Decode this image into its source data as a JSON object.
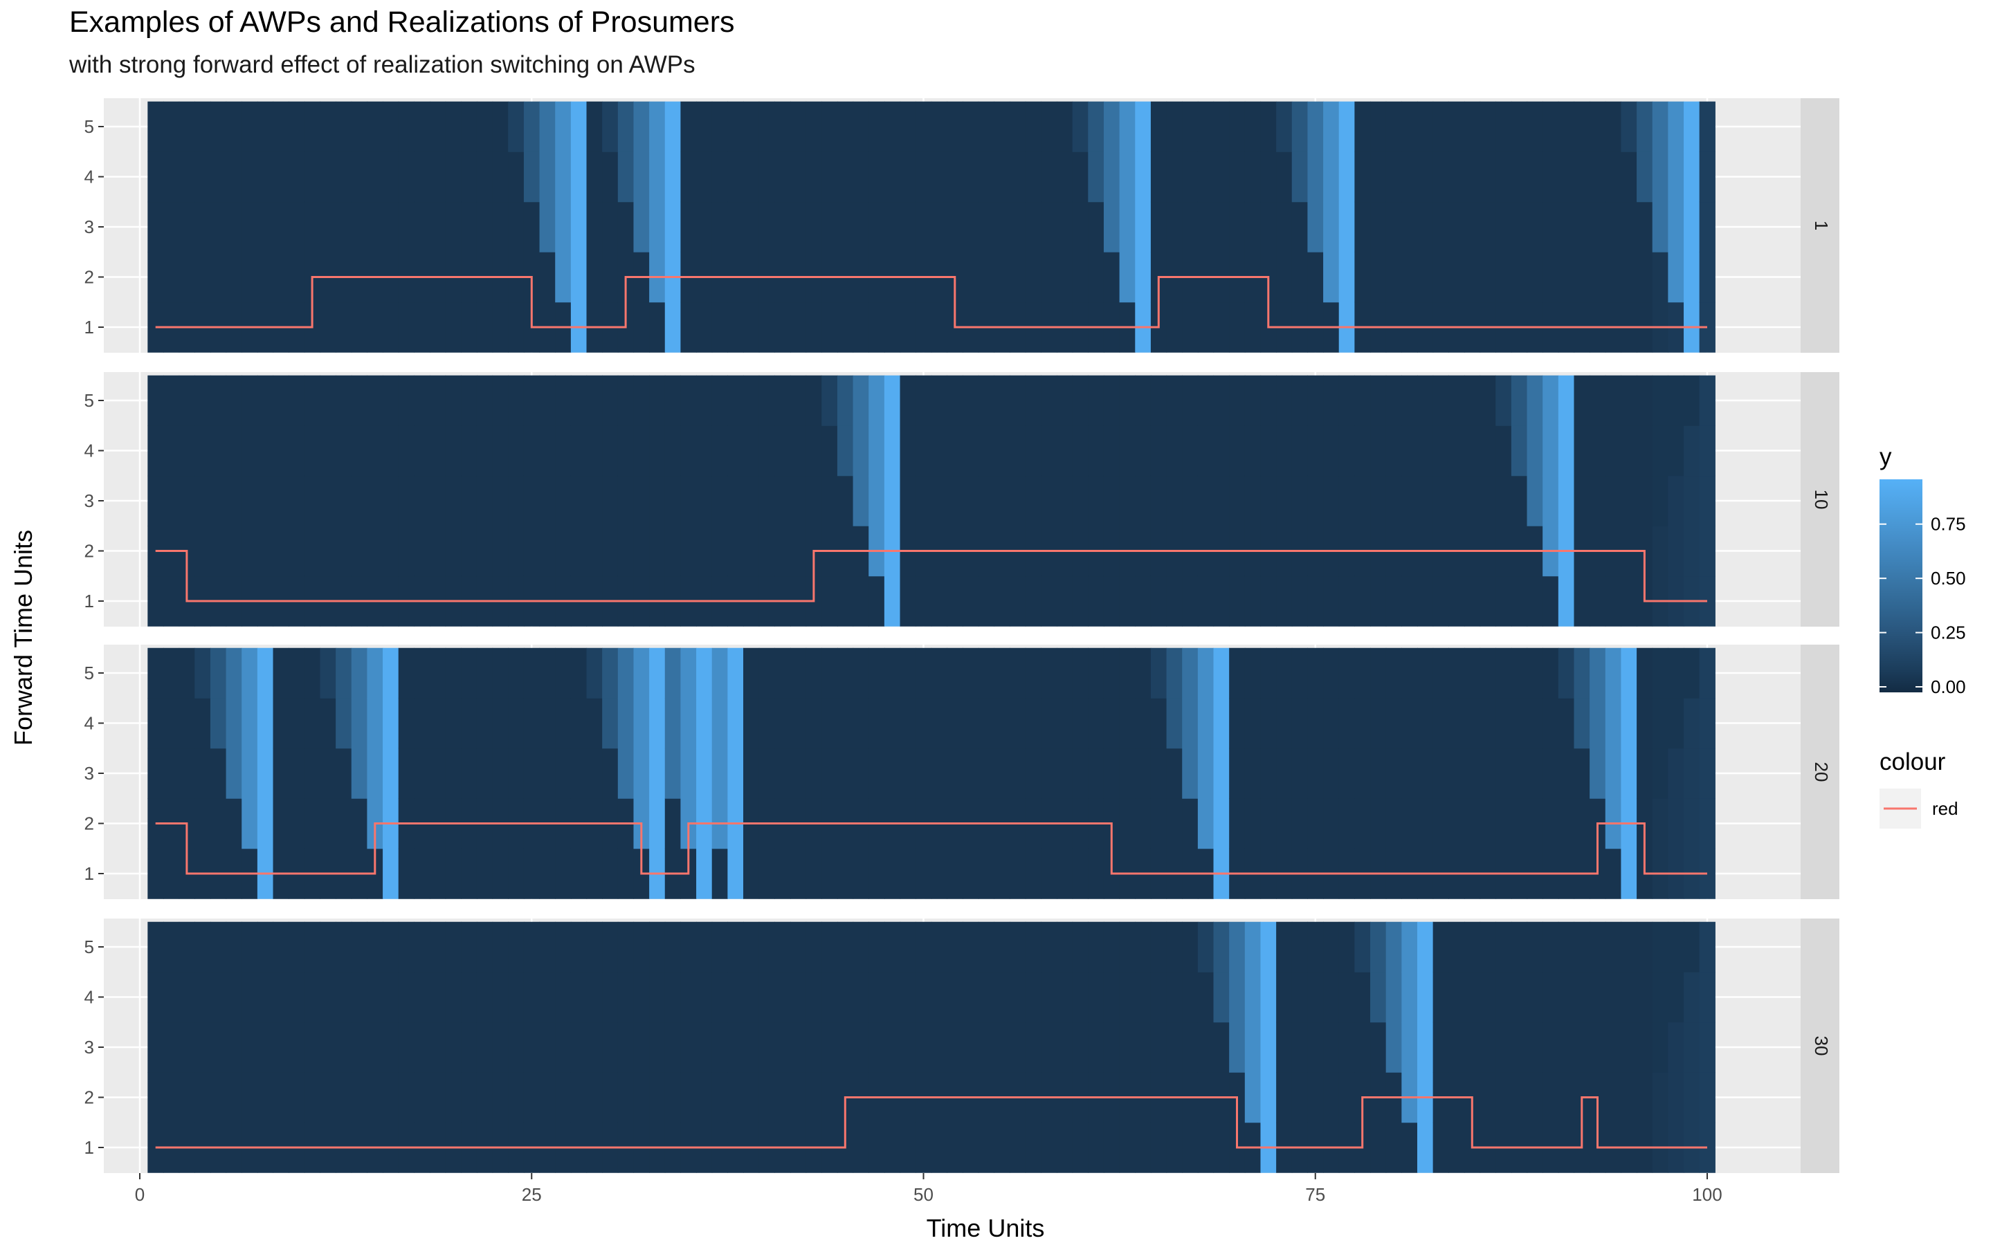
{
  "chart_data": {
    "type": "heatmap",
    "title": "Examples of AWPs and Realizations of Prosumers",
    "subtitle": "with strong forward effect of realization switching on AWPs",
    "xlabel": "Time Units",
    "ylabel": "Forward Time Units",
    "xlim": [
      0,
      100
    ],
    "x_ticks": [
      0,
      25,
      50,
      75,
      100
    ],
    "y_ticks": [
      1,
      2,
      3,
      4,
      5
    ],
    "x_range": [
      1,
      100
    ],
    "forward_horizon": 5,
    "fill_legend": {
      "title": "y",
      "ticks": [
        0.0,
        0.25,
        0.5,
        0.75
      ],
      "tick_labels": [
        "0.00",
        "0.25",
        "0.50",
        "0.75"
      ],
      "low_color": "#132B43",
      "high_color": "#56B1F7"
    },
    "colour_legend": {
      "title": "colour",
      "label": "red",
      "color": "#F8766D"
    },
    "facets": [
      {
        "label": "1",
        "realization_steps": [
          [
            1,
            1
          ],
          [
            11,
            2
          ],
          [
            25,
            1
          ],
          [
            31,
            2
          ],
          [
            52,
            1
          ],
          [
            65,
            2
          ],
          [
            72,
            1
          ],
          [
            100,
            1
          ]
        ],
        "switch_times": [
          28,
          34,
          64,
          77,
          99
        ]
      },
      {
        "label": "10",
        "realization_steps": [
          [
            1,
            2
          ],
          [
            3,
            1
          ],
          [
            43,
            2
          ],
          [
            96,
            1
          ],
          [
            100,
            1
          ]
        ],
        "switch_times": [
          48,
          91
        ]
      },
      {
        "label": "20",
        "realization_steps": [
          [
            1,
            2
          ],
          [
            3,
            1
          ],
          [
            15,
            2
          ],
          [
            32,
            1
          ],
          [
            35,
            2
          ],
          [
            62,
            1
          ],
          [
            93,
            2
          ],
          [
            96,
            1
          ],
          [
            100,
            1
          ]
        ],
        "switch_times": [
          8,
          16,
          33,
          36,
          38,
          69,
          95
        ]
      },
      {
        "label": "30",
        "realization_steps": [
          [
            1,
            1
          ],
          [
            45,
            2
          ],
          [
            70,
            1
          ],
          [
            78,
            2
          ],
          [
            85,
            1
          ],
          [
            92,
            2
          ],
          [
            93,
            1
          ],
          [
            100,
            1
          ]
        ],
        "switch_times": [
          72,
          82
        ]
      }
    ]
  }
}
